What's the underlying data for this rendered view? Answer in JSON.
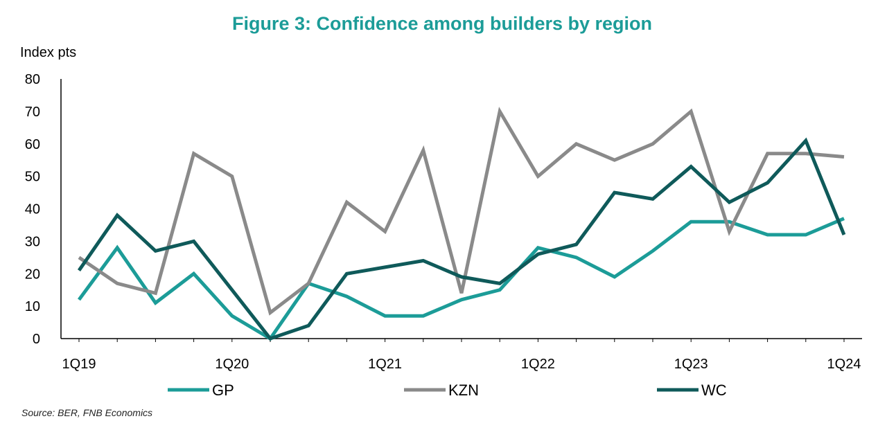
{
  "chart_data": {
    "type": "line",
    "title": "Figure 3: Confidence among builders by region",
    "ylabel": "Index pts",
    "xlabel": "",
    "ylim": [
      0,
      80
    ],
    "yticks": [
      0,
      10,
      20,
      30,
      40,
      50,
      60,
      70,
      80
    ],
    "x": [
      "1Q19",
      "2Q19",
      "3Q19",
      "4Q19",
      "1Q20",
      "2Q20",
      "3Q20",
      "4Q20",
      "1Q21",
      "2Q21",
      "3Q21",
      "4Q21",
      "1Q22",
      "2Q22",
      "3Q22",
      "4Q22",
      "1Q23",
      "2Q23",
      "3Q23",
      "4Q23",
      "1Q24"
    ],
    "xtick_labels": [
      "1Q19",
      "1Q20",
      "1Q21",
      "1Q22",
      "1Q23",
      "1Q24"
    ],
    "grid": false,
    "legend_position": "bottom",
    "series": [
      {
        "name": "GP",
        "color": "#1c9c98",
        "values": [
          12,
          28,
          11,
          20,
          7,
          0,
          17,
          13,
          7,
          7,
          12,
          15,
          28,
          25,
          19,
          27,
          36,
          36,
          32,
          32,
          37
        ]
      },
      {
        "name": "KZN",
        "color": "#8a8a8a",
        "values": [
          25,
          17,
          14,
          57,
          50,
          8,
          17,
          42,
          33,
          58,
          14,
          70,
          50,
          60,
          55,
          60,
          70,
          33,
          57,
          57,
          56
        ]
      },
      {
        "name": "WC",
        "color": "#0f5a5a",
        "values": [
          21,
          38,
          27,
          30,
          15,
          0,
          4,
          20,
          22,
          24,
          19,
          17,
          26,
          29,
          45,
          43,
          53,
          42,
          48,
          61,
          32
        ]
      }
    ],
    "source": "Source: BER, FNB Economics"
  },
  "colors": {
    "title": "#1c9c98",
    "axis": "#000000"
  }
}
